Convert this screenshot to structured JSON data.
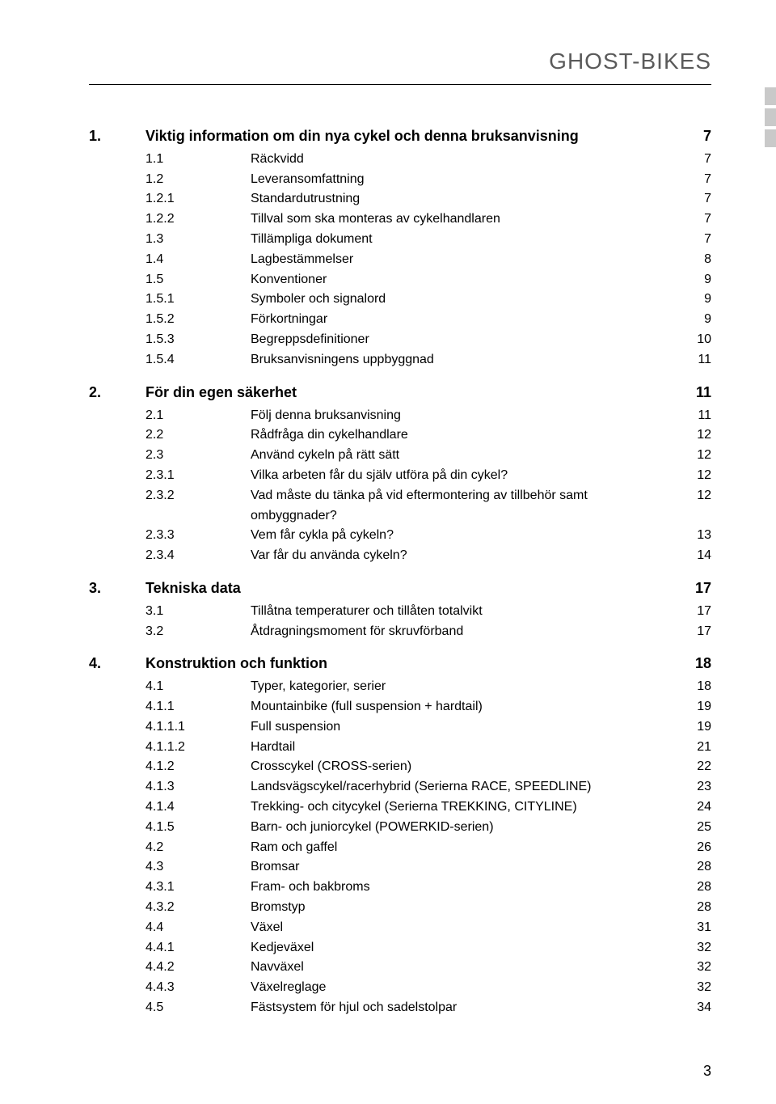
{
  "header": "GHOST-BIKES",
  "page_number": "3",
  "sections": [
    {
      "num": "1.",
      "title": "Viktig information om din nya cykel och denna bruksanvisning",
      "page": "7",
      "items": [
        {
          "num": "1.1",
          "title": "Räckvidd",
          "page": "7"
        },
        {
          "num": "1.2",
          "title": "Leveransomfattning",
          "page": "7"
        },
        {
          "num": "1.2.1",
          "title": "Standardutrustning",
          "page": "7"
        },
        {
          "num": "1.2.2",
          "title": "Tillval som ska monteras av cykelhandlaren",
          "page": "7"
        },
        {
          "num": "1.3",
          "title": "Tillämpliga dokument",
          "page": "7"
        },
        {
          "num": "1.4",
          "title": "Lagbestämmelser",
          "page": "8"
        },
        {
          "num": "1.5",
          "title": "Konventioner",
          "page": "9"
        },
        {
          "num": "1.5.1",
          "title": "Symboler och signalord",
          "page": "9"
        },
        {
          "num": "1.5.2",
          "title": "Förkortningar",
          "page": "9"
        },
        {
          "num": "1.5.3",
          "title": "Begreppsdefinitioner",
          "page": "10"
        },
        {
          "num": "1.5.4",
          "title": "Bruksanvisningens uppbyggnad",
          "page": "11"
        }
      ]
    },
    {
      "num": "2.",
      "title": "För din egen säkerhet",
      "page": "11",
      "items": [
        {
          "num": "2.1",
          "title": "Följ denna bruksanvisning",
          "page": "11"
        },
        {
          "num": "2.2",
          "title": "Rådfråga din cykelhandlare",
          "page": "12"
        },
        {
          "num": "2.3",
          "title": "Använd cykeln på rätt sätt",
          "page": "12"
        },
        {
          "num": "2.3.1",
          "title": "Vilka arbeten får du själv utföra på din cykel?",
          "page": "12"
        },
        {
          "num": "2.3.2",
          "title": "Vad måste du tänka på vid eftermontering av tillbehör samt ombyggnader?",
          "page": "12"
        },
        {
          "num": "2.3.3",
          "title": "Vem får cykla på cykeln?",
          "page": "13"
        },
        {
          "num": "2.3.4",
          "title": "Var får du använda cykeln?",
          "page": "14"
        }
      ]
    },
    {
      "num": "3.",
      "title": "Tekniska data",
      "page": "17",
      "items": [
        {
          "num": "3.1",
          "title": "Tillåtna temperaturer och tillåten totalvikt",
          "page": "17"
        },
        {
          "num": "3.2",
          "title": "Åtdragningsmoment för skruvförband",
          "page": "17"
        }
      ]
    },
    {
      "num": "4.",
      "title": "Konstruktion och funktion",
      "page": "18",
      "items": [
        {
          "num": "4.1",
          "title": "Typer, kategorier, serier",
          "page": "18"
        },
        {
          "num": "4.1.1",
          "title": "Mountainbike (full suspension + hardtail)",
          "page": "19"
        },
        {
          "num": "4.1.1.1",
          "title": "Full suspension",
          "page": "19"
        },
        {
          "num": "4.1.1.2",
          "title": "Hardtail",
          "page": "21"
        },
        {
          "num": "4.1.2",
          "title": "Crosscykel (CROSS-serien)",
          "page": "22"
        },
        {
          "num": "4.1.3",
          "title": "Landsvägscykel/racerhybrid (Serierna RACE, SPEEDLINE)",
          "page": "23"
        },
        {
          "num": "4.1.4",
          "title": "Trekking- och citycykel (Serierna TREKKING, CITYLINE)",
          "page": "24"
        },
        {
          "num": "4.1.5",
          "title": "Barn- och juniorcykel (POWERKID-serien)",
          "page": "25"
        },
        {
          "num": "4.2",
          "title": "Ram och gaffel",
          "page": "26"
        },
        {
          "num": "4.3",
          "title": "Bromsar",
          "page": "28"
        },
        {
          "num": "4.3.1",
          "title": "Fram- och bakbroms",
          "page": "28"
        },
        {
          "num": "4.3.2",
          "title": "Bromstyp",
          "page": "28"
        },
        {
          "num": "4.4",
          "title": "Växel",
          "page": "31"
        },
        {
          "num": "4.4.1",
          "title": "Kedjeväxel",
          "page": "32"
        },
        {
          "num": "4.4.2",
          "title": "Navväxel",
          "page": "32"
        },
        {
          "num": "4.4.3",
          "title": "Växelreglage",
          "page": "32"
        },
        {
          "num": "4.5",
          "title": "Fästsystem för hjul och sadelstolpar",
          "page": "34"
        }
      ]
    }
  ]
}
